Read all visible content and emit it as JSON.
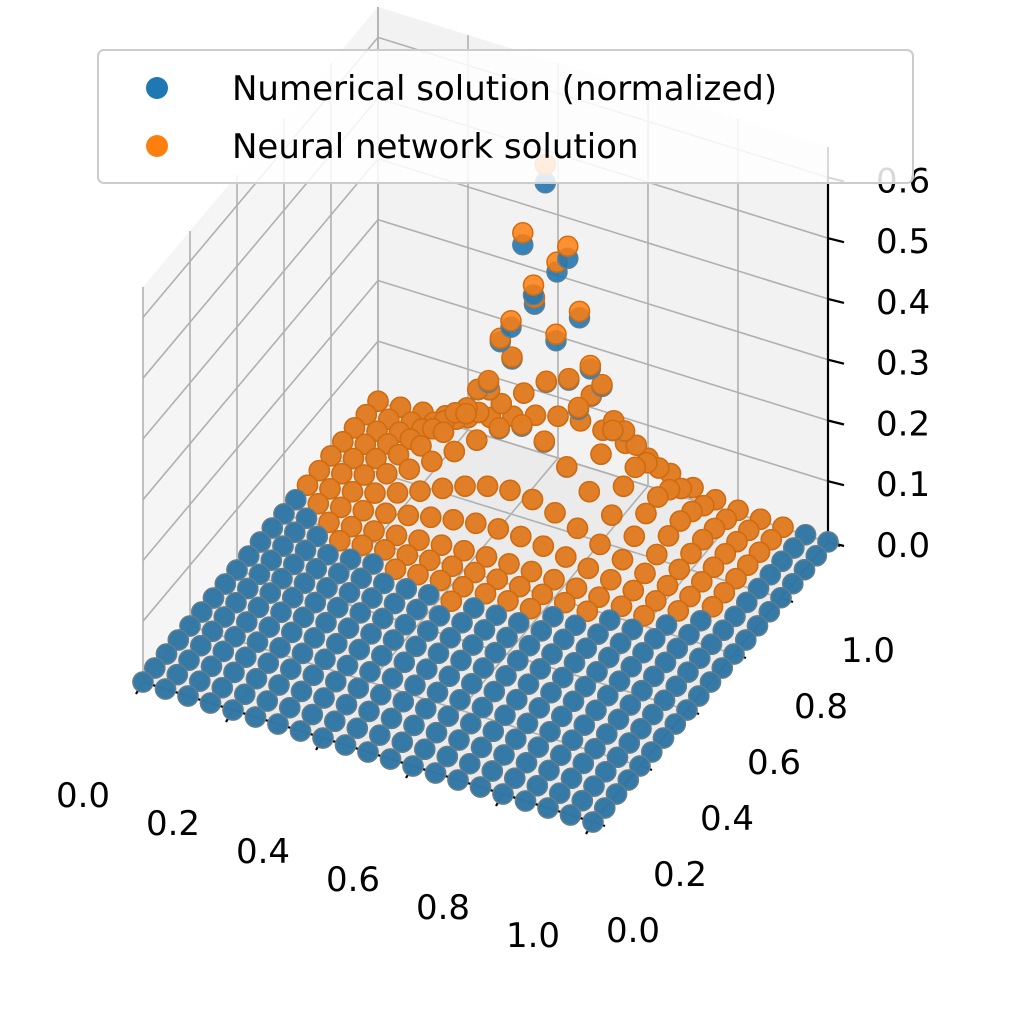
{
  "chart_data": {
    "type": "scatter3d",
    "title": "",
    "xlabel": "",
    "ylabel": "",
    "zlabel": "",
    "xlim": [
      0.0,
      1.0
    ],
    "ylim": [
      0.0,
      1.0
    ],
    "zlim": [
      0.0,
      0.65
    ],
    "x_ticks": [
      "0.0",
      "0.2",
      "0.4",
      "0.6",
      "0.8",
      "1.0"
    ],
    "y_ticks": [
      "0.0",
      "0.2",
      "0.4",
      "0.6",
      "0.8",
      "1.0"
    ],
    "z_ticks": [
      "0.0",
      "0.1",
      "0.2",
      "0.3",
      "0.4",
      "0.5",
      "0.6"
    ],
    "grid": true,
    "legend_position": "top",
    "grid_resolution": 21,
    "peak": {
      "x": 0.45,
      "y": 0.85,
      "z_numerical": 0.52,
      "z_neural": 0.55
    },
    "series": [
      {
        "name": "Numerical solution (normalized)",
        "color": "#1f77b4"
      },
      {
        "name": "Neural network solution",
        "color": "#ff7f0e"
      }
    ]
  }
}
